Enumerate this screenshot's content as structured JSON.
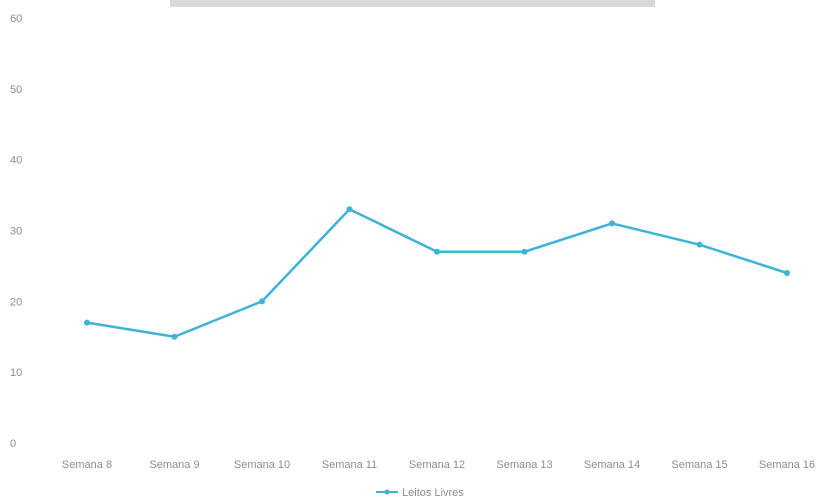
{
  "chart_data": {
    "type": "line",
    "title": "",
    "xlabel": "",
    "ylabel": "",
    "categories": [
      "Semana 8",
      "Semana 9",
      "Semana 10",
      "Semana 11",
      "Semana 12",
      "Semana 13",
      "Semana 14",
      "Semana 15",
      "Semana 16"
    ],
    "series": [
      {
        "name": "Leitos Livres",
        "values": [
          17,
          15,
          20,
          33,
          27,
          27,
          31,
          28,
          24
        ],
        "color": "#3fb2d6"
      }
    ],
    "ylim": [
      0,
      60
    ],
    "yticks": [
      0,
      10,
      20,
      30,
      40,
      50,
      60
    ],
    "grid": false,
    "legend_position": "bottom"
  }
}
